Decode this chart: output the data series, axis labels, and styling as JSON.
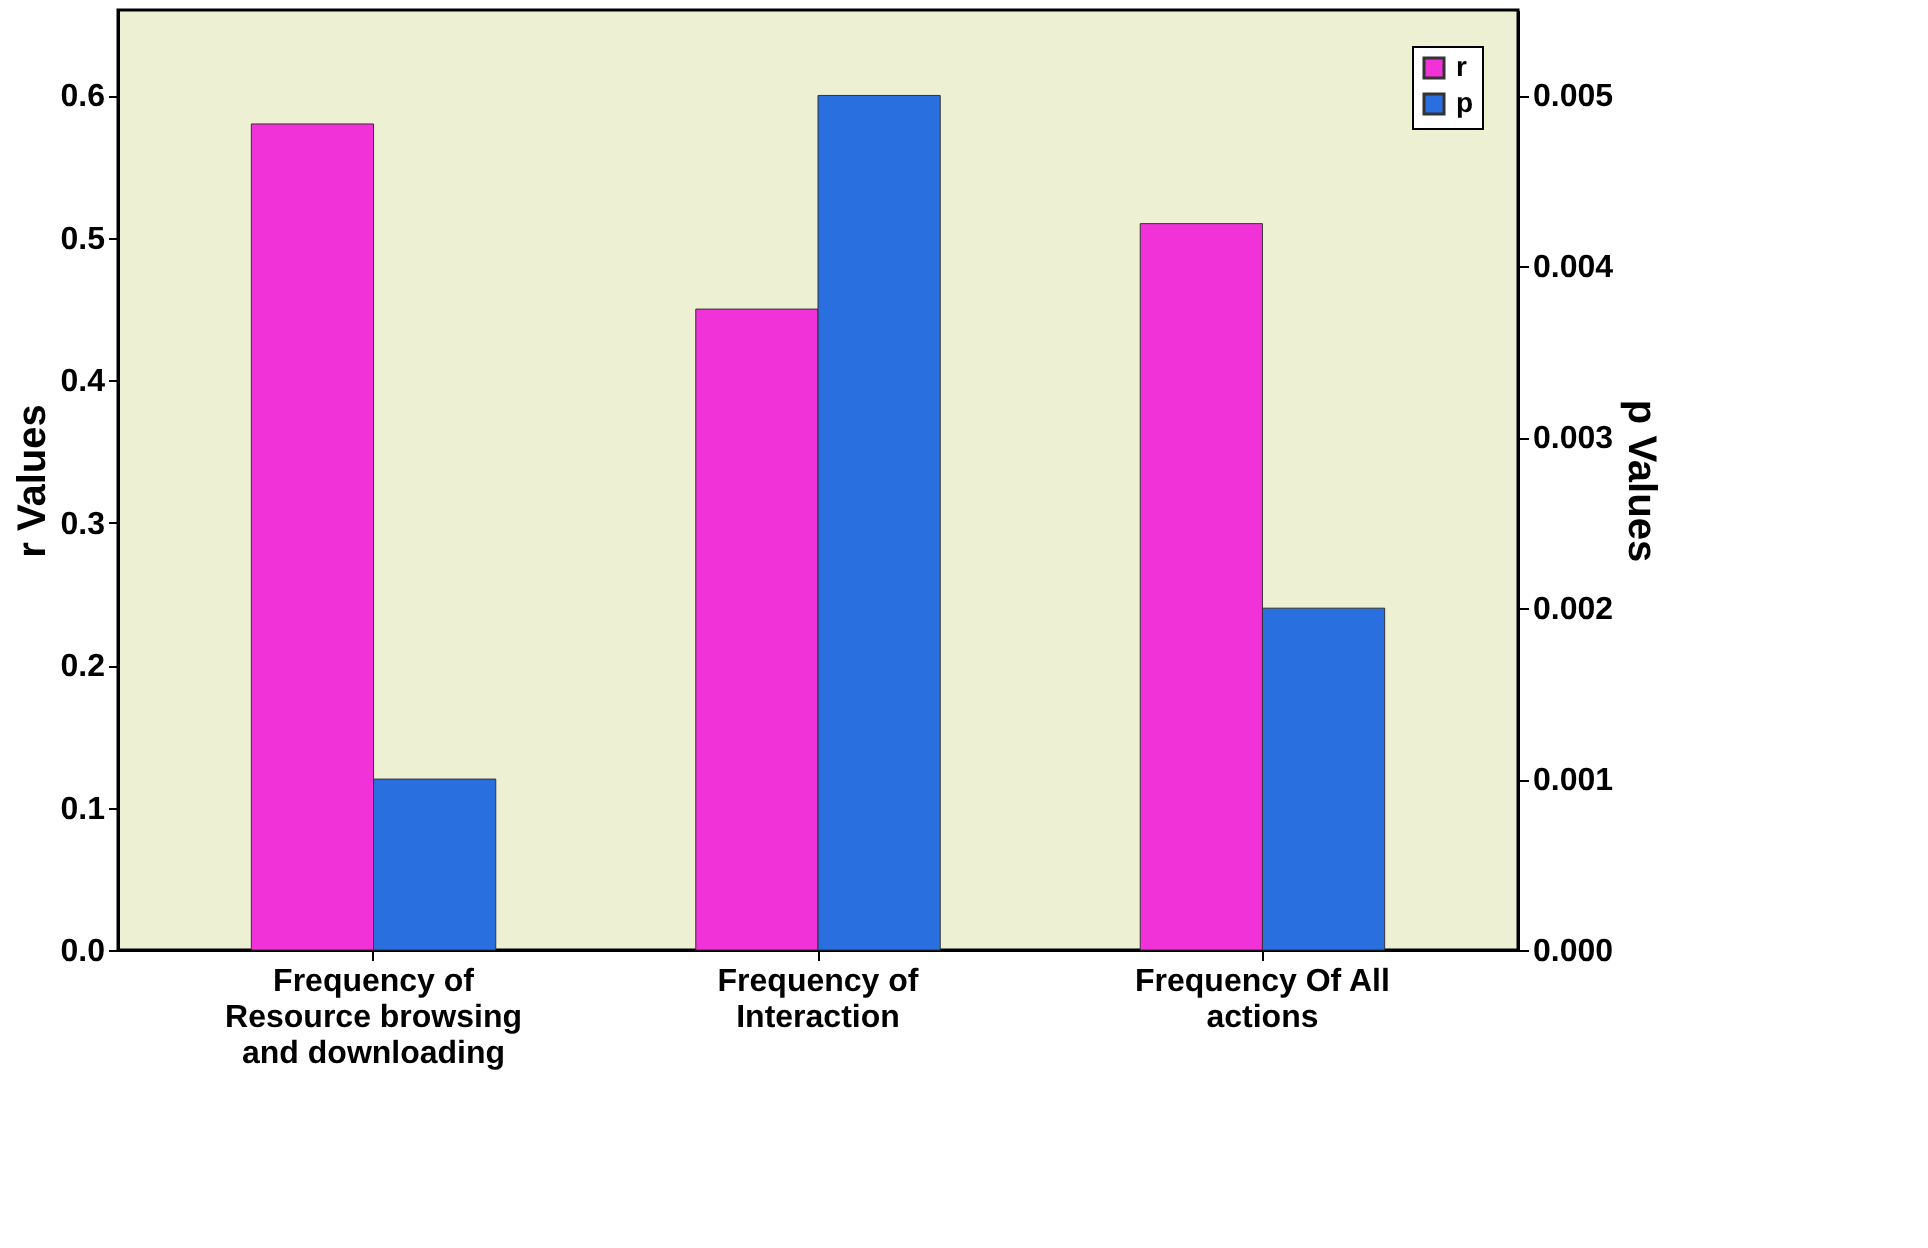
{
  "chart_data": {
    "type": "bar",
    "categories": [
      "Frequency of Resource browsing and downloading",
      "Frequency of Interaction",
      "Frequency Of All actions"
    ],
    "series": [
      {
        "name": "r",
        "color": "#f032d8",
        "values": [
          0.58,
          0.45,
          0.51
        ]
      },
      {
        "name": "p",
        "color": "#2a6fe0",
        "values": [
          0.001,
          0.005,
          0.002
        ],
        "axis": "y2"
      }
    ],
    "ylabel": "r Values",
    "y2label": "p Values",
    "ylim": [
      0,
      0.66
    ],
    "yticks": [
      {
        "value": 0,
        "label": "0.0"
      },
      0.1,
      0.2,
      0.3,
      0.4,
      0.5,
      0.6
    ],
    "y2lim": [
      0,
      0.0055
    ],
    "y2ticks": [
      {
        "value": 0,
        "label": "0.000"
      },
      0.001,
      0.002,
      0.003,
      0.004,
      0.005
    ],
    "grid": false,
    "legend": "top right"
  }
}
